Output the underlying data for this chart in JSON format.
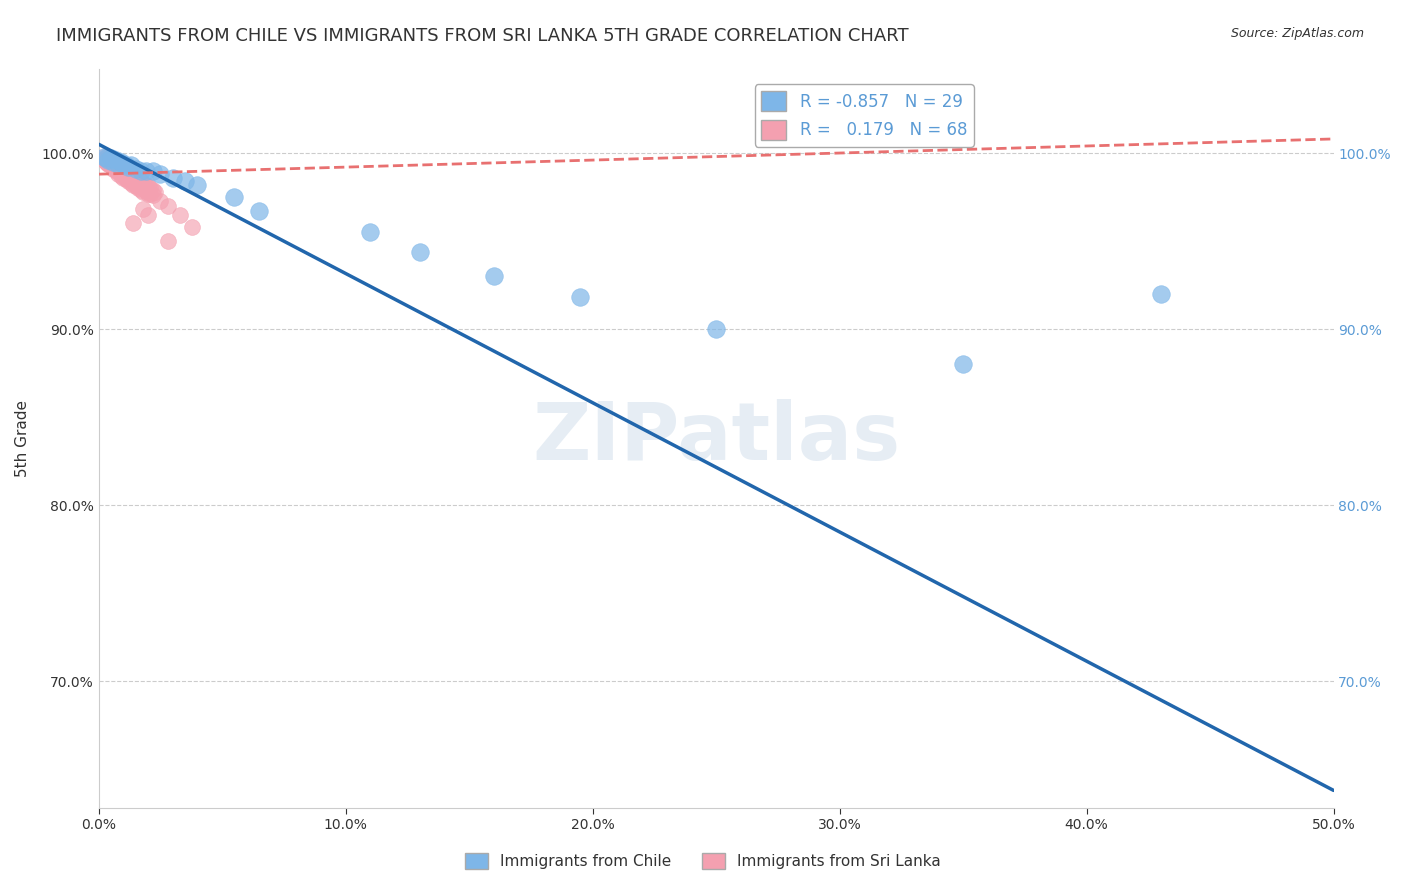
{
  "title": "IMMIGRANTS FROM CHILE VS IMMIGRANTS FROM SRI LANKA 5TH GRADE CORRELATION CHART",
  "source": "Source: ZipAtlas.com",
  "xlabel_bottom": [
    "Immigrants from Chile",
    "Immigrants from Sri Lanka"
  ],
  "ylabel": "5th Grade",
  "watermark": "ZIPatlas",
  "xmin": 0.0,
  "xmax": 0.5,
  "ymin": 0.628,
  "ymax": 1.048,
  "yticks": [
    0.7,
    0.8,
    0.9,
    1.0
  ],
  "ytick_labels": [
    "70.0%",
    "80.0%",
    "90.0%",
    "100.0%"
  ],
  "xticks": [
    0.0,
    0.1,
    0.2,
    0.3,
    0.4,
    0.5
  ],
  "xtick_labels": [
    "0.0%",
    "10.0%",
    "20.0%",
    "30.0%",
    "40.0%",
    "50.0%"
  ],
  "R_chile": -0.857,
  "N_chile": 29,
  "R_srilanka": 0.179,
  "N_srilanka": 68,
  "chile_color": "#7EB6E8",
  "srilanka_color": "#F4A0B0",
  "chile_line_color": "#2166AC",
  "srilanka_line_color": "#E87070",
  "chile_scatter_x": [
    0.002,
    0.003,
    0.004,
    0.005,
    0.006,
    0.007,
    0.008,
    0.009,
    0.01,
    0.011,
    0.012,
    0.013,
    0.015,
    0.017,
    0.019,
    0.022,
    0.025,
    0.03,
    0.035,
    0.04,
    0.055,
    0.065,
    0.11,
    0.13,
    0.16,
    0.195,
    0.25,
    0.35,
    0.43
  ],
  "chile_scatter_y": [
    0.998,
    0.997,
    0.996,
    0.997,
    0.995,
    0.996,
    0.994,
    0.995,
    0.994,
    0.993,
    0.992,
    0.993,
    0.991,
    0.99,
    0.99,
    0.99,
    0.988,
    0.986,
    0.984,
    0.982,
    0.975,
    0.967,
    0.955,
    0.944,
    0.93,
    0.918,
    0.9,
    0.88,
    0.92
  ],
  "srilanka_scatter_x": [
    0.002,
    0.002,
    0.003,
    0.003,
    0.004,
    0.004,
    0.005,
    0.005,
    0.006,
    0.006,
    0.007,
    0.007,
    0.008,
    0.008,
    0.009,
    0.009,
    0.01,
    0.01,
    0.011,
    0.011,
    0.012,
    0.012,
    0.013,
    0.013,
    0.014,
    0.014,
    0.015,
    0.015,
    0.016,
    0.016,
    0.017,
    0.017,
    0.018,
    0.018,
    0.019,
    0.02,
    0.02,
    0.021,
    0.022,
    0.023,
    0.003,
    0.004,
    0.005,
    0.006,
    0.007,
    0.008,
    0.009,
    0.01,
    0.011,
    0.012,
    0.013,
    0.014,
    0.015,
    0.016,
    0.017,
    0.018,
    0.019,
    0.02,
    0.021,
    0.022,
    0.025,
    0.028,
    0.033,
    0.038,
    0.018,
    0.014,
    0.02,
    0.028
  ],
  "srilanka_scatter_y": [
    0.998,
    0.996,
    0.997,
    0.995,
    0.997,
    0.994,
    0.996,
    0.993,
    0.995,
    0.991,
    0.994,
    0.99,
    0.993,
    0.988,
    0.992,
    0.987,
    0.991,
    0.986,
    0.99,
    0.985,
    0.989,
    0.984,
    0.988,
    0.983,
    0.987,
    0.982,
    0.986,
    0.981,
    0.985,
    0.98,
    0.984,
    0.979,
    0.983,
    0.978,
    0.982,
    0.981,
    0.977,
    0.98,
    0.979,
    0.978,
    0.995,
    0.994,
    0.993,
    0.992,
    0.991,
    0.99,
    0.989,
    0.988,
    0.987,
    0.986,
    0.985,
    0.984,
    0.983,
    0.982,
    0.981,
    0.98,
    0.979,
    0.978,
    0.977,
    0.976,
    0.973,
    0.97,
    0.965,
    0.958,
    0.968,
    0.96,
    0.965,
    0.95
  ],
  "chile_line_x0": 0.0,
  "chile_line_y0": 1.005,
  "chile_line_x1": 0.5,
  "chile_line_y1": 0.638,
  "srilanka_line_x0": 0.0,
  "srilanka_line_y0": 0.988,
  "srilanka_line_x1": 0.5,
  "srilanka_line_y1": 1.008,
  "grid_color": "#CCCCCC",
  "background_color": "#FFFFFF",
  "title_color": "#333333",
  "right_tick_color": "#5B9BD5"
}
